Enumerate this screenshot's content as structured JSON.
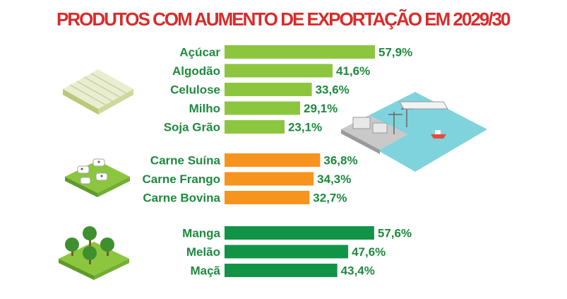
{
  "title": "PRODUTOS COM AUMENTO DE EXPORTAÇÃO EM 2029/30",
  "colors": {
    "title": "#d92b2b",
    "label": "#1e8a3e",
    "grains": "#8cc63f",
    "meats": "#f7941d",
    "fruits": "#129447"
  },
  "chart_data": {
    "type": "bar",
    "orientation": "horizontal",
    "title": "PRODUTOS COM AUMENTO DE EXPORTAÇÃO EM 2029/30",
    "unit": "%",
    "xlim": [
      0,
      60
    ],
    "groups": [
      {
        "color": "#8cc63f",
        "icon": "greenhouse-icon",
        "categories": [
          "Açúcar",
          "Algodão",
          "Celulose",
          "Milho",
          "Soja Grão"
        ],
        "values": [
          57.9,
          41.6,
          33.6,
          29.1,
          23.1
        ],
        "labels": [
          "57,9%",
          "41,6%",
          "33,6%",
          "29,1%",
          "23,1%"
        ]
      },
      {
        "color": "#f7941d",
        "icon": "livestock-farm-icon",
        "categories": [
          "Carne Suína",
          "Carne Frango",
          "Carne Bovina"
        ],
        "values": [
          36.8,
          34.3,
          32.7
        ],
        "labels": [
          "36,8%",
          "34,3%",
          "32,7%"
        ]
      },
      {
        "color": "#129447",
        "icon": "orchard-icon",
        "categories": [
          "Manga",
          "Melão",
          "Maçã"
        ],
        "values": [
          57.6,
          47.6,
          43.4
        ],
        "labels": [
          "57,6%",
          "47,6%",
          "43,4%"
        ]
      }
    ]
  },
  "illustrations": [
    "greenhouse-icon",
    "livestock-farm-icon",
    "orchard-icon",
    "port-icon"
  ]
}
